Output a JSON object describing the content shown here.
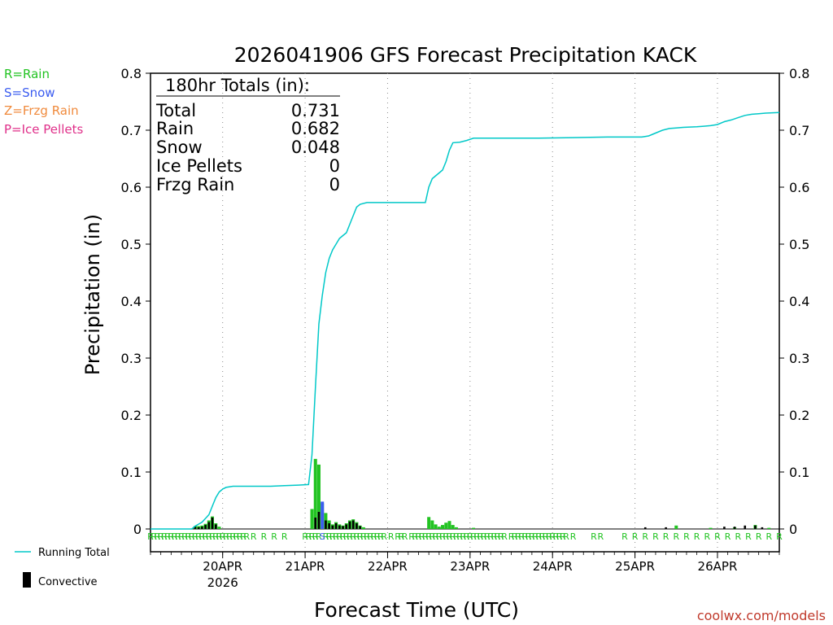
{
  "chart_data": {
    "type": "bar",
    "title": "2026041906 GFS Forecast Precipitation KACK",
    "ylabel": "Precipitation (in)",
    "xlabel": "Forecast Time (UTC)",
    "watermark": "coolwx.com/models",
    "ylim": [
      0,
      0.8
    ],
    "yticks": [
      "0",
      "0.1",
      "0.2",
      "0.3",
      "0.4",
      "0.5",
      "0.6",
      "0.7",
      "0.8"
    ],
    "x_unit": "forecast hour",
    "xlim": [
      -3,
      180
    ],
    "date_ticks": [
      {
        "hour": 18,
        "label": "20APR",
        "sublabel": "2026"
      },
      {
        "hour": 42,
        "label": "21APR",
        "sublabel": ""
      },
      {
        "hour": 66,
        "label": "22APR",
        "sublabel": ""
      },
      {
        "hour": 90,
        "label": "23APR",
        "sublabel": ""
      },
      {
        "hour": 114,
        "label": "24APR",
        "sublabel": ""
      },
      {
        "hour": 138,
        "label": "25APR",
        "sublabel": ""
      },
      {
        "hour": 162,
        "label": "26APR",
        "sublabel": ""
      }
    ],
    "grid": true,
    "legend": {
      "types": [
        {
          "label": "R=Rain",
          "color": "#22c322"
        },
        {
          "label": "S=Snow",
          "color": "#3b5cf0"
        },
        {
          "label": "Z=Frzg Rain",
          "color": "#f08a3c"
        },
        {
          "label": "P=Ice Pellets",
          "color": "#e0308a"
        }
      ],
      "running_total_label": "Running Total",
      "convective_label": "Convective",
      "running_total_color": "#00c8c8"
    },
    "totals": {
      "heading": "180hr Totals (in):",
      "rows": [
        {
          "label": "Total",
          "value": "0.731"
        },
        {
          "label": "Rain",
          "value": "0.682"
        },
        {
          "label": "Snow",
          "value": "0.048"
        },
        {
          "label": "Ice Pellets",
          "value": "0"
        },
        {
          "label": "Frzg Rain",
          "value": "0"
        }
      ]
    },
    "series": [
      {
        "name": "Rain",
        "color": "#22c322",
        "points": [
          [
            10,
            0.005
          ],
          [
            11,
            0.005
          ],
          [
            12,
            0.006
          ],
          [
            13,
            0.009
          ],
          [
            14,
            0.015
          ],
          [
            15,
            0.022
          ],
          [
            16,
            0.01
          ],
          [
            17,
            0.004
          ],
          [
            44,
            0.035
          ],
          [
            45,
            0.123
          ],
          [
            46,
            0.113
          ],
          [
            47,
            0.045
          ],
          [
            48,
            0.028
          ],
          [
            49,
            0.015
          ],
          [
            50,
            0.008
          ],
          [
            51,
            0.012
          ],
          [
            52,
            0.008
          ],
          [
            53,
            0.006
          ],
          [
            54,
            0.01
          ],
          [
            55,
            0.015
          ],
          [
            56,
            0.017
          ],
          [
            57,
            0.012
          ],
          [
            58,
            0.006
          ],
          [
            59,
            0.003
          ],
          [
            78,
            0.021
          ],
          [
            79,
            0.015
          ],
          [
            80,
            0.008
          ],
          [
            81,
            0.004
          ],
          [
            82,
            0.007
          ],
          [
            83,
            0.011
          ],
          [
            84,
            0.014
          ],
          [
            85,
            0.007
          ],
          [
            86,
            0.003
          ],
          [
            91,
            0.002
          ],
          [
            150,
            0.006
          ],
          [
            160,
            0.002
          ],
          [
            167,
            0.003
          ],
          [
            173,
            0.007
          ],
          [
            177,
            0.002
          ]
        ]
      },
      {
        "name": "Snow",
        "color": "#3b5cf0",
        "points": [
          [
            47,
            0.048
          ]
        ]
      },
      {
        "name": "Convective",
        "color": "#000000",
        "points": [
          [
            10,
            0.004
          ],
          [
            11,
            0.003
          ],
          [
            12,
            0.004
          ],
          [
            13,
            0.007
          ],
          [
            14,
            0.012
          ],
          [
            15,
            0.02
          ],
          [
            16,
            0.008
          ],
          [
            45,
            0.02
          ],
          [
            46,
            0.03
          ],
          [
            48,
            0.015
          ],
          [
            49,
            0.01
          ],
          [
            50,
            0.006
          ],
          [
            51,
            0.01
          ],
          [
            52,
            0.006
          ],
          [
            53,
            0.005
          ],
          [
            54,
            0.008
          ],
          [
            55,
            0.013
          ],
          [
            56,
            0.015
          ],
          [
            57,
            0.01
          ],
          [
            58,
            0.005
          ],
          [
            141,
            0.003
          ],
          [
            147,
            0.003
          ],
          [
            164,
            0.004
          ],
          [
            167,
            0.004
          ],
          [
            170,
            0.006
          ],
          [
            173,
            0.006
          ],
          [
            175,
            0.003
          ]
        ]
      }
    ],
    "running_total": {
      "name": "Running Total",
      "points": [
        [
          -3,
          0
        ],
        [
          9,
          0
        ],
        [
          10,
          0.005
        ],
        [
          12,
          0.012
        ],
        [
          14,
          0.025
        ],
        [
          15,
          0.04
        ],
        [
          16,
          0.055
        ],
        [
          17,
          0.065
        ],
        [
          18,
          0.07
        ],
        [
          19,
          0.073
        ],
        [
          21,
          0.075
        ],
        [
          26,
          0.075
        ],
        [
          32,
          0.075
        ],
        [
          36,
          0.076
        ],
        [
          40,
          0.077
        ],
        [
          43,
          0.078
        ],
        [
          44,
          0.13
        ],
        [
          45,
          0.25
        ],
        [
          46,
          0.36
        ],
        [
          47,
          0.41
        ],
        [
          48,
          0.45
        ],
        [
          49,
          0.475
        ],
        [
          50,
          0.49
        ],
        [
          51,
          0.5
        ],
        [
          52,
          0.51
        ],
        [
          53,
          0.515
        ],
        [
          54,
          0.52
        ],
        [
          55,
          0.535
        ],
        [
          56,
          0.55
        ],
        [
          57,
          0.565
        ],
        [
          58,
          0.57
        ],
        [
          60,
          0.573
        ],
        [
          70,
          0.573
        ],
        [
          77,
          0.573
        ],
        [
          78,
          0.6
        ],
        [
          79,
          0.615
        ],
        [
          80,
          0.62
        ],
        [
          81,
          0.625
        ],
        [
          82,
          0.63
        ],
        [
          83,
          0.645
        ],
        [
          84,
          0.665
        ],
        [
          85,
          0.678
        ],
        [
          87,
          0.679
        ],
        [
          89,
          0.682
        ],
        [
          91,
          0.686
        ],
        [
          96,
          0.686
        ],
        [
          110,
          0.686
        ],
        [
          120,
          0.687
        ],
        [
          130,
          0.688
        ],
        [
          140,
          0.688
        ],
        [
          142,
          0.69
        ],
        [
          144,
          0.695
        ],
        [
          146,
          0.7
        ],
        [
          148,
          0.703
        ],
        [
          150,
          0.704
        ],
        [
          152,
          0.705
        ],
        [
          156,
          0.706
        ],
        [
          158,
          0.707
        ],
        [
          160,
          0.708
        ],
        [
          162,
          0.71
        ],
        [
          164,
          0.715
        ],
        [
          166,
          0.718
        ],
        [
          168,
          0.722
        ],
        [
          170,
          0.726
        ],
        [
          172,
          0.728
        ],
        [
          174,
          0.729
        ],
        [
          176,
          0.73
        ],
        [
          180,
          0.731
        ]
      ]
    },
    "ptype_markers": [
      {
        "letter": "R",
        "hours": [
          -3,
          -2,
          -1,
          0,
          1,
          2,
          3,
          4,
          5,
          6,
          7,
          8,
          9,
          10,
          11,
          12,
          13,
          14,
          15,
          16,
          17,
          18,
          19,
          20,
          21,
          22,
          23,
          24,
          25,
          27,
          30,
          33,
          36,
          42,
          43,
          44,
          45,
          46,
          48,
          49,
          50,
          51,
          52,
          53,
          54,
          55,
          56,
          57,
          58,
          59,
          60,
          61,
          62,
          63,
          64,
          65,
          67,
          69,
          70,
          71,
          73,
          74,
          75,
          76,
          77,
          78,
          79,
          80,
          81,
          82,
          83,
          84,
          85,
          86,
          87,
          88,
          89,
          90,
          91,
          92,
          93,
          94,
          95,
          96,
          97,
          98,
          99,
          100,
          102,
          103,
          104,
          105,
          106,
          107,
          108,
          109,
          110,
          111,
          112,
          113,
          114,
          115,
          116,
          117,
          118,
          120,
          126,
          128,
          135,
          138,
          141,
          144,
          147,
          150,
          153,
          156,
          159,
          162,
          165,
          168,
          171,
          174,
          177,
          180
        ]
      },
      {
        "letter": "S",
        "hours": [
          47
        ]
      }
    ]
  }
}
